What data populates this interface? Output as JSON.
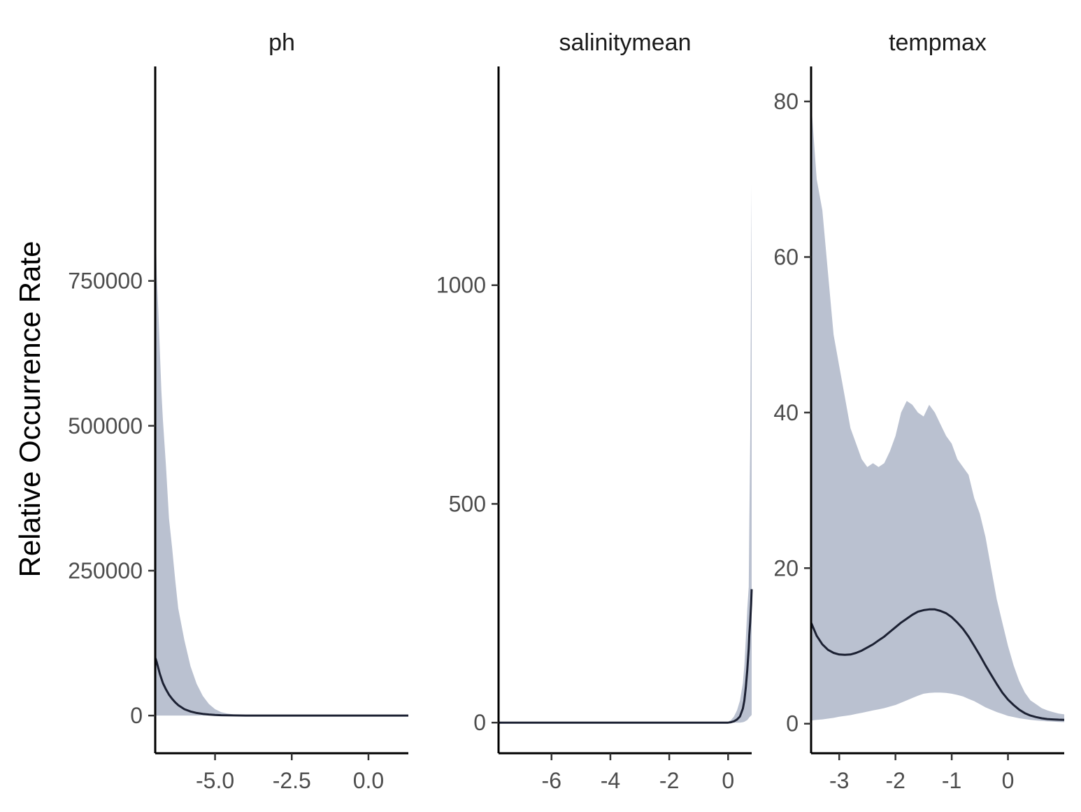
{
  "chart_data": {
    "type": "area",
    "ylabel": "Relative Occurrence Rate",
    "colors": {
      "ribbon": "#bac1d0",
      "line": "#1c2133",
      "axis": "#000000"
    },
    "grid": false,
    "panels": [
      {
        "strip": "ph",
        "xlim": [
          -6.95,
          1.3
        ],
        "ylim": [
          -65000,
          1120000
        ],
        "xticks": [
          -5.0,
          -2.5,
          0.0
        ],
        "xtick_labels": [
          "-5.0",
          "-2.5",
          "0.0"
        ],
        "yticks": [
          0,
          250000,
          500000,
          750000
        ],
        "ytick_labels": [
          "0",
          "250000",
          "500000",
          "750000"
        ],
        "x": [
          -6.95,
          -6.9,
          -6.85,
          -6.8,
          -6.75,
          -6.7,
          -6.6,
          -6.5,
          -6.4,
          -6.3,
          -6.2,
          -6.0,
          -5.8,
          -5.6,
          -5.4,
          -5.2,
          -5.0,
          -4.8,
          -4.6,
          -4.4,
          -4.2,
          -4.0,
          -3.8,
          -3.5,
          -3.0,
          -2.0,
          -1.0,
          0.0,
          1.3
        ],
        "upper": [
          880000,
          760000,
          700000,
          630000,
          560000,
          510000,
          430000,
          340000,
          290000,
          235000,
          185000,
          130000,
          85000,
          55000,
          34000,
          20000,
          11000,
          6000,
          3500,
          2000,
          1200,
          700,
          400,
          200,
          80,
          20,
          5,
          2,
          0
        ],
        "lower": [
          0,
          0,
          0,
          0,
          0,
          0,
          0,
          0,
          0,
          0,
          0,
          0,
          0,
          0,
          0,
          0,
          0,
          0,
          0,
          0,
          0,
          0,
          0,
          0,
          0,
          0,
          0,
          0,
          0
        ],
        "fit": [
          100000,
          92000,
          82000,
          72000,
          64000,
          56000,
          45000,
          36000,
          29000,
          23000,
          18000,
          11000,
          7000,
          4500,
          2900,
          1800,
          1100,
          700,
          420,
          260,
          160,
          100,
          60,
          30,
          10,
          2,
          0,
          0,
          0
        ]
      },
      {
        "strip": "salinitymean",
        "xlim": [
          -7.8,
          0.8
        ],
        "ylim": [
          -70,
          1500
        ],
        "xticks": [
          -6,
          -4,
          -2,
          0
        ],
        "xtick_labels": [
          "-6",
          "-4",
          "-2",
          "0"
        ],
        "yticks": [
          0,
          500,
          1000
        ],
        "ytick_labels": [
          "0",
          "500",
          "1000"
        ],
        "x": [
          -7.8,
          -2.0,
          -0.5,
          0.0,
          0.1,
          0.2,
          0.3,
          0.4,
          0.5,
          0.55,
          0.6,
          0.65,
          0.7,
          0.72,
          0.75,
          0.78,
          0.8
        ],
        "upper": [
          0,
          0,
          0,
          2,
          6,
          14,
          28,
          50,
          90,
          130,
          190,
          260,
          310,
          450,
          650,
          1040,
          1230
        ],
        "lower": [
          0,
          0,
          0,
          0,
          0,
          0,
          0,
          0,
          1,
          2,
          4,
          6,
          10,
          12,
          14,
          16,
          18
        ],
        "fit": [
          0,
          0,
          0,
          0,
          1,
          3,
          7,
          14,
          32,
          50,
          80,
          120,
          170,
          200,
          230,
          270,
          305
        ]
      },
      {
        "strip": "tempmax",
        "xlim": [
          -3.5,
          1.0
        ],
        "ylim": [
          -3.8,
          84.5
        ],
        "xticks": [
          -3,
          -2,
          -1,
          0
        ],
        "xtick_labels": [
          "-3",
          "-2",
          "-1",
          "0"
        ],
        "yticks": [
          0,
          20,
          40,
          60,
          80
        ],
        "ytick_labels": [
          "0",
          "20",
          "40",
          "60",
          "80"
        ],
        "x": [
          -3.5,
          -3.4,
          -3.3,
          -3.2,
          -3.1,
          -3.0,
          -2.9,
          -2.8,
          -2.7,
          -2.6,
          -2.5,
          -2.4,
          -2.3,
          -2.2,
          -2.1,
          -2.0,
          -1.9,
          -1.8,
          -1.7,
          -1.6,
          -1.5,
          -1.4,
          -1.3,
          -1.2,
          -1.1,
          -1.0,
          -0.9,
          -0.8,
          -0.7,
          -0.6,
          -0.5,
          -0.4,
          -0.3,
          -0.2,
          -0.1,
          0.0,
          0.1,
          0.2,
          0.3,
          0.4,
          0.5,
          0.6,
          0.7,
          0.8,
          0.9,
          1.0
        ],
        "upper": [
          80,
          70,
          66,
          58,
          50,
          46,
          42,
          38,
          36,
          34,
          33,
          33.5,
          33,
          33.5,
          35,
          37,
          40,
          41.5,
          41,
          40,
          39.5,
          41,
          40,
          38.5,
          37,
          36,
          34,
          33,
          32,
          29,
          27,
          24,
          20,
          16,
          13,
          10,
          7.5,
          5.5,
          4,
          3,
          2.5,
          2,
          1.7,
          1.5,
          1.3,
          1.2
        ],
        "lower": [
          0.4,
          0.5,
          0.55,
          0.65,
          0.75,
          0.9,
          1.0,
          1.1,
          1.25,
          1.4,
          1.55,
          1.7,
          1.85,
          2.0,
          2.2,
          2.4,
          2.7,
          3.0,
          3.3,
          3.6,
          3.85,
          3.95,
          4.0,
          4.0,
          3.95,
          3.85,
          3.7,
          3.5,
          3.2,
          2.9,
          2.5,
          2.1,
          1.8,
          1.5,
          1.25,
          1.0,
          0.85,
          0.7,
          0.6,
          0.5,
          0.42,
          0.36,
          0.3,
          0.26,
          0.22,
          0.2
        ],
        "fit": [
          13,
          11.3,
          10.2,
          9.5,
          9.1,
          8.9,
          8.85,
          8.9,
          9.1,
          9.4,
          9.8,
          10.2,
          10.7,
          11.2,
          11.8,
          12.4,
          13.0,
          13.5,
          14.0,
          14.4,
          14.6,
          14.7,
          14.7,
          14.5,
          14.2,
          13.7,
          13.0,
          12.2,
          11.2,
          10.0,
          8.8,
          7.5,
          6.3,
          5.1,
          4.0,
          3.1,
          2.4,
          1.8,
          1.35,
          1.05,
          0.85,
          0.7,
          0.6,
          0.55,
          0.52,
          0.5
        ]
      }
    ]
  }
}
